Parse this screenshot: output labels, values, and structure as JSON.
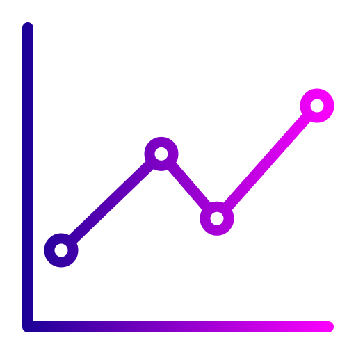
{
  "icon": {
    "name": "line-chart-icon",
    "style": "gradient outline",
    "gradient_colors": [
      "#1a0096",
      "#ff00ff"
    ]
  },
  "chart_data": {
    "type": "line",
    "x": [
      1,
      2,
      3,
      4
    ],
    "values": [
      1,
      3,
      1.66,
      4
    ],
    "markers": "hollow circles",
    "grid": false,
    "legend": "none"
  }
}
